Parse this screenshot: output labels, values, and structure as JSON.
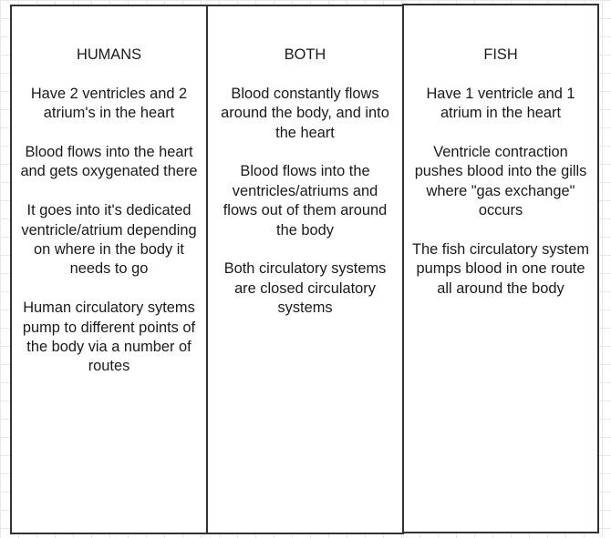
{
  "columns": [
    {
      "title": "HUMANS",
      "paragraphs": [
        "Have 2 ventricles and 2 atrium's in the heart",
        "Blood flows into the heart and gets oxygenated there",
        "It goes into it's dedicated ventricle/atrium depending on where in the body it needs to go",
        "Human circulatory sytems pump to different points of the body via a number of routes"
      ]
    },
    {
      "title": "BOTH",
      "paragraphs": [
        "Blood constantly flows around the body, and into the heart",
        "Blood flows into the ventricles/atriums and flows out of them around the body",
        "Both circulatory systems are closed circulatory systems"
      ]
    },
    {
      "title": "FISH",
      "paragraphs": [
        "Have 1 ventricle and 1 atrium in the heart",
        "Ventricle contraction pushes blood into the gills where \"gas exchange\" occurs",
        "The fish circulatory system pumps blood in one route all around the body"
      ]
    }
  ]
}
